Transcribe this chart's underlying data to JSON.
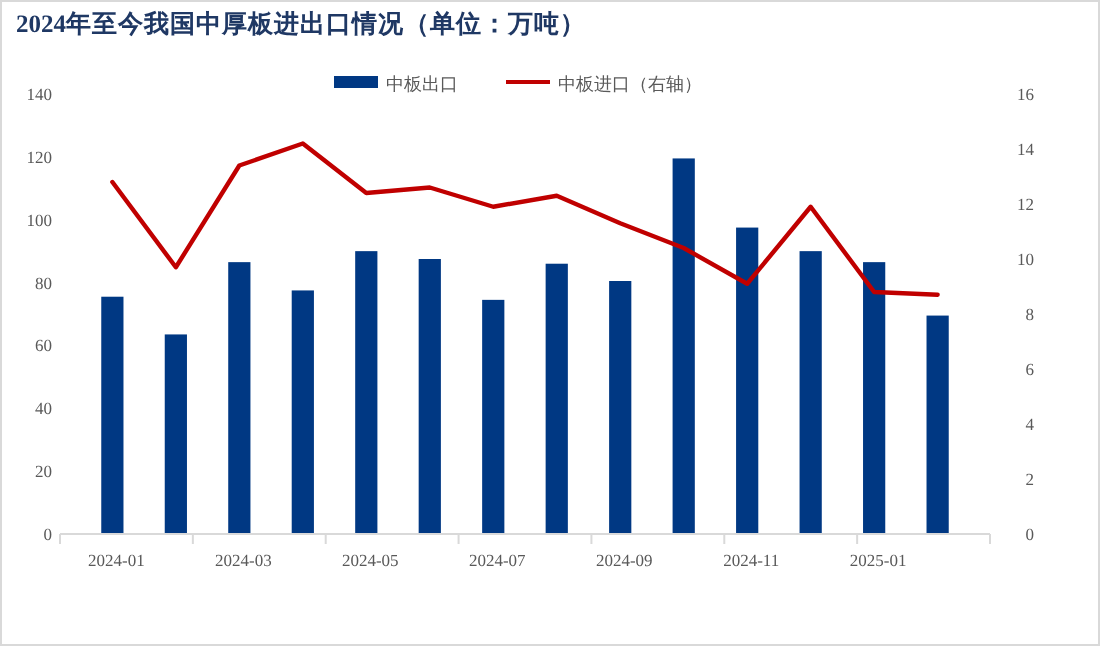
{
  "chart_data": {
    "type": "bar",
    "title": "2024年至今我国中厚板进出口情况（单位：万吨）",
    "categories": [
      "2024-01",
      null,
      "2024-03",
      null,
      "2024-05",
      null,
      "2024-07",
      null,
      "2024-09",
      null,
      "2024-11",
      null,
      "2025-01",
      null
    ],
    "series": [
      {
        "name": "中板出口",
        "color": "#003883",
        "values": [
          75.5,
          63.5,
          86.5,
          77.5,
          90,
          87.5,
          74.5,
          86,
          80.5,
          119.5,
          97.5,
          90,
          86.5,
          69.5
        ]
      },
      {
        "name": "中板进口（右轴）",
        "type": "line",
        "axis": "y2",
        "color": "#c00000",
        "values": [
          12.8,
          9.7,
          13.4,
          14.2,
          12.4,
          12.6,
          11.9,
          12.3,
          11.3,
          10.4,
          9.1,
          11.9,
          8.8,
          8.7
        ]
      }
    ],
    "ylim": [
      0,
      140
    ],
    "yticks": [
      0,
      20,
      40,
      60,
      80,
      100,
      120,
      140
    ],
    "y2lim": [
      0,
      16
    ],
    "y2ticks": [
      0,
      2,
      4,
      6,
      8,
      10,
      12,
      14,
      16
    ],
    "legend": "top",
    "grid": false
  }
}
